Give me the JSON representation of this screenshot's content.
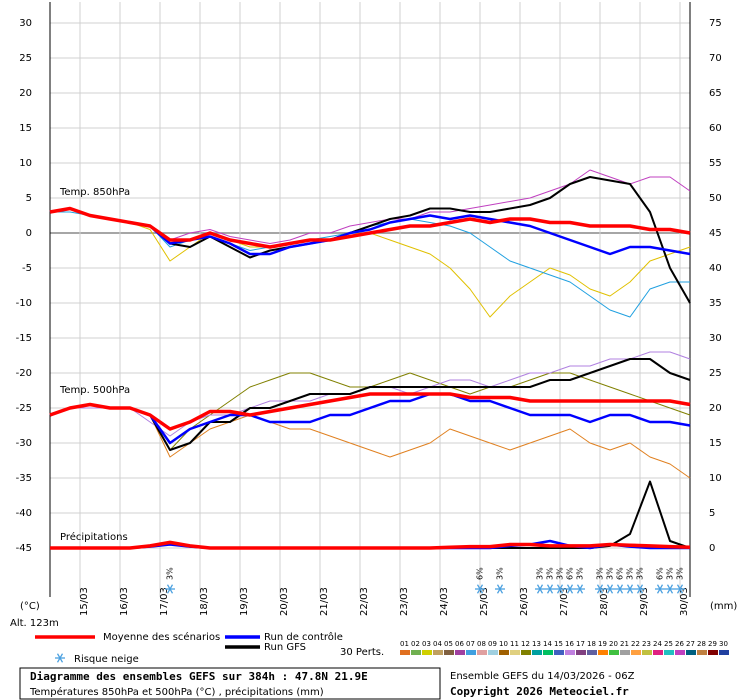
{
  "chart_data": {
    "type": "line",
    "x": [
      0,
      12,
      24,
      36,
      48,
      60,
      72,
      84,
      96,
      108,
      120,
      132,
      144,
      156,
      168,
      180,
      192,
      204,
      216,
      228,
      240,
      252,
      264,
      276,
      288,
      300,
      312,
      324,
      336,
      348,
      360,
      372,
      384
    ],
    "xlim": [
      0,
      384
    ],
    "xticks": [
      {
        "value": 18,
        "label": "15/03"
      },
      {
        "value": 42,
        "label": "16/03"
      },
      {
        "value": 66,
        "label": "17/03"
      },
      {
        "value": 90,
        "label": "18/03"
      },
      {
        "value": 114,
        "label": "19/03"
      },
      {
        "value": 138,
        "label": "20/03"
      },
      {
        "value": 162,
        "label": "21/03"
      },
      {
        "value": 186,
        "label": "22/03"
      },
      {
        "value": 210,
        "label": "23/03"
      },
      {
        "value": 234,
        "label": "24/03"
      },
      {
        "value": 258,
        "label": "25/03"
      },
      {
        "value": 282,
        "label": "26/03"
      },
      {
        "value": 306,
        "label": "27/03"
      },
      {
        "value": 330,
        "label": "28/03"
      },
      {
        "value": 354,
        "label": "29/03"
      },
      {
        "value": 378,
        "label": "30/03"
      }
    ],
    "ylim": [
      -52,
      33
    ],
    "yticks": [
      30,
      25,
      20,
      15,
      10,
      5,
      0,
      -5,
      -10,
      -15,
      -20,
      -25,
      -30,
      -35,
      -40,
      -45
    ],
    "y2lim": [
      -7,
      78
    ],
    "y2ticks": [
      75,
      70,
      65,
      60,
      55,
      50,
      45,
      40,
      35,
      30,
      25,
      20,
      15,
      10,
      5,
      0
    ],
    "y_unit": "(°C)",
    "y2_unit": "(mm)",
    "altitude": "Alt. 123m",
    "grid": true,
    "annotations": [
      "Temp. 850hPa",
      "Temp. 500hPa",
      "Précipitations"
    ],
    "series": [
      {
        "name": "Moyenne des scénarios",
        "color": "#ff0000",
        "width": 3.5,
        "t850": [
          3,
          3.5,
          2.5,
          2,
          1.5,
          1,
          -1,
          -1,
          0,
          -1,
          -1.5,
          -2,
          -1.5,
          -1,
          -1,
          -0.5,
          0,
          0.5,
          1,
          1,
          1.5,
          2,
          1.5,
          2,
          2,
          1.5,
          1.5,
          1,
          1,
          1,
          0.5,
          0.5,
          0
        ],
        "t500": [
          -26,
          -25,
          -24.5,
          -25,
          -25,
          -26,
          -28,
          -27,
          -25.5,
          -25.5,
          -26,
          -25.5,
          -25,
          -24.5,
          -24,
          -23.5,
          -23,
          -23,
          -23,
          -23,
          -23,
          -23.5,
          -23.5,
          -23.5,
          -24,
          -24,
          -24,
          -24,
          -24,
          -24,
          -24,
          -24,
          -24.5
        ],
        "precip": [
          0,
          0,
          0,
          0,
          0,
          0.3,
          0.8,
          0.3,
          0,
          0,
          0,
          0,
          0,
          0,
          0,
          0,
          0,
          0,
          0,
          0,
          0.1,
          0.2,
          0.2,
          0.5,
          0.5,
          0.3,
          0.3,
          0.3,
          0.5,
          0.4,
          0.3,
          0.2,
          0.1
        ]
      },
      {
        "name": "Run de contrôle",
        "color": "#0000ff",
        "width": 2.5,
        "t850": [
          3,
          3.5,
          2.5,
          2,
          1.5,
          1,
          -1.5,
          -1,
          -0.5,
          -1.5,
          -3,
          -3,
          -2,
          -1.5,
          -1,
          0,
          0.5,
          1.5,
          2,
          2.5,
          2,
          2.5,
          2,
          1.5,
          1,
          0,
          -1,
          -2,
          -3,
          -2,
          -2,
          -2.5,
          -3
        ],
        "t500": [
          -26,
          -25,
          -24.5,
          -25,
          -25,
          -26,
          -30,
          -28,
          -27,
          -26,
          -26,
          -27,
          -27,
          -27,
          -26,
          -26,
          -25,
          -24,
          -24,
          -23,
          -23,
          -24,
          -24,
          -25,
          -26,
          -26,
          -26,
          -27,
          -26,
          -26,
          -27,
          -27,
          -27.5
        ],
        "precip": [
          0,
          0,
          0,
          0,
          0,
          0.2,
          0.5,
          0.2,
          0,
          0,
          0,
          0,
          0,
          0,
          0,
          0,
          0,
          0,
          0,
          0,
          0,
          0,
          0,
          0.3,
          0.5,
          1,
          0.3,
          0,
          0.5,
          0.2,
          0,
          0,
          0
        ]
      },
      {
        "name": "Run GFS",
        "color": "#000000",
        "width": 2,
        "t850": [
          3,
          3.5,
          2.5,
          2,
          1.5,
          1,
          -1.5,
          -2,
          -0.5,
          -2,
          -3.5,
          -2.5,
          -2,
          -1.5,
          -1,
          0,
          1,
          2,
          2.5,
          3.5,
          3.5,
          3,
          3,
          3.5,
          4,
          5,
          7,
          8,
          7.5,
          7,
          3,
          -5,
          -10
        ],
        "t500": [
          -26,
          -25,
          -24.5,
          -25,
          -25,
          -26,
          -31,
          -30,
          -27,
          -27,
          -25,
          -25,
          -24,
          -23,
          -23,
          -23,
          -22,
          -22,
          -22,
          -22,
          -22,
          -22,
          -22,
          -22,
          -22,
          -21,
          -21,
          -20,
          -19,
          -18,
          -18,
          -20,
          -21
        ],
        "precip": [
          0,
          0,
          0,
          0,
          0,
          0.3,
          0.6,
          0.2,
          0,
          0,
          0,
          0,
          0,
          0,
          0,
          0,
          0,
          0,
          0,
          0,
          0,
          0,
          0,
          0,
          0,
          0,
          0,
          0,
          0.3,
          2,
          9.5,
          1,
          0
        ]
      }
    ],
    "perturbations": [
      {
        "color": "#e0c000",
        "t850": [
          3,
          3.5,
          2.5,
          2,
          1.5,
          0.5,
          -4,
          -2,
          0,
          -1,
          -2,
          -2,
          -1.5,
          -1,
          -1,
          0,
          0,
          -1,
          -2,
          -3,
          -5,
          -8,
          -12,
          -9,
          -7,
          -5,
          -6,
          -8,
          -9,
          -7,
          -4,
          -3,
          -2
        ]
      },
      {
        "color": "#c040c0",
        "t850": [
          3,
          3.5,
          2.5,
          2,
          1.5,
          1,
          -1,
          0,
          0.5,
          -0.5,
          -1,
          -1.5,
          -1,
          0,
          0,
          1,
          1.5,
          2,
          2,
          3,
          3,
          3.5,
          4,
          4.5,
          5,
          6,
          7,
          9,
          8,
          7,
          8,
          8,
          6
        ]
      },
      {
        "color": "#20a0e0",
        "t850": [
          3,
          3,
          2.5,
          2,
          1.5,
          1,
          -2,
          -1,
          -0.5,
          -1.5,
          -2.5,
          -2,
          -1.5,
          -1,
          -0.5,
          0,
          1,
          1.5,
          2,
          1.5,
          1,
          0,
          -2,
          -4,
          -5,
          -6,
          -7,
          -9,
          -11,
          -12,
          -8,
          -7,
          -7
        ]
      },
      {
        "color": "#808000",
        "t500": [
          -26,
          -25,
          -24.5,
          -25,
          -25,
          -26,
          -31,
          -28,
          -26,
          -24,
          -22,
          -21,
          -20,
          -20,
          -21,
          -22,
          -22,
          -21,
          -20,
          -21,
          -22,
          -23,
          -22,
          -22,
          -21,
          -20,
          -20,
          -21,
          -22,
          -23,
          -24,
          -25,
          -26
        ]
      },
      {
        "color": "#e08020",
        "t500": [
          -26,
          -25,
          -24.5,
          -25,
          -25,
          -26,
          -32,
          -30,
          -28,
          -27,
          -26,
          -27,
          -28,
          -28,
          -29,
          -30,
          -31,
          -32,
          -31,
          -30,
          -28,
          -29,
          -30,
          -31,
          -30,
          -29,
          -28,
          -30,
          -31,
          -30,
          -32,
          -33,
          -35
        ]
      },
      {
        "color": "#b080e0",
        "t500": [
          -26,
          -25,
          -25,
          -25,
          -25,
          -27,
          -29,
          -27,
          -26,
          -26,
          -25,
          -24,
          -24,
          -24,
          -23,
          -23,
          -22,
          -22,
          -23,
          -22,
          -21,
          -21,
          -22,
          -21,
          -20,
          -20,
          -19,
          -19,
          -18,
          -18,
          -17,
          -17,
          -18
        ]
      }
    ],
    "snow_risk": {
      "x": [
        72,
        258,
        270,
        294,
        300,
        306,
        312,
        318,
        330,
        336,
        342,
        348,
        354,
        366,
        372,
        378
      ],
      "labels": [
        "3%",
        "6%",
        "3%",
        "3%",
        "3%",
        "3%",
        "6%",
        "3%",
        "3%",
        "3%",
        "6%",
        "3%",
        "3%",
        "6%",
        "3%",
        "3%"
      ],
      "color": "#4aa0e0",
      "name": "Risque neige"
    },
    "members": {
      "title": "30 Perts.",
      "names": [
        "01",
        "02",
        "03",
        "04",
        "05",
        "06",
        "07",
        "08",
        "09",
        "10",
        "11",
        "12",
        "13",
        "14",
        "15",
        "16",
        "17",
        "18",
        "19",
        "20",
        "21",
        "22",
        "23",
        "24",
        "25",
        "26",
        "27",
        "28",
        "29",
        "30"
      ],
      "colors": [
        "#e07020",
        "#70b050",
        "#d0d000",
        "#c0a060",
        "#806040",
        "#a040a0",
        "#40a0e0",
        "#e0a0a0",
        "#a0d0e0",
        "#a06000",
        "#e0d080",
        "#808000",
        "#00a0a0",
        "#00c060",
        "#4060c0",
        "#c080e0",
        "#804080",
        "#6060a0",
        "#ff8000",
        "#40c040",
        "#a0a0a0",
        "#ffa040",
        "#c0c040",
        "#e02080",
        "#20c0c0",
        "#c040c0",
        "#006080",
        "#c08040",
        "#800000",
        "#2040a0"
      ]
    }
  },
  "footer": {
    "title": "Diagramme des ensembles GEFS sur 384h : 47.8N 21.9E",
    "subtitle": "Températures 850hPa et 500hPa (°C) , précipitations (mm)",
    "run": "Ensemble GEFS du 14/03/2026 - 06Z",
    "copyright": "Copyright 2026 Meteociel.fr"
  }
}
